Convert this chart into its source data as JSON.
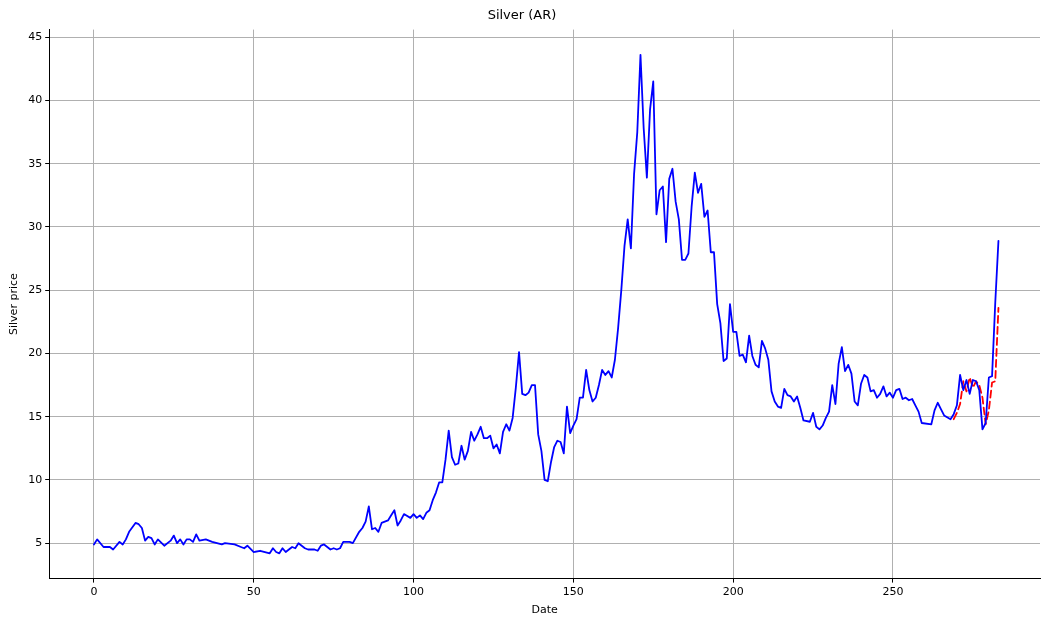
{
  "chart_data": {
    "type": "line",
    "title": "Silver (AR)",
    "xlabel": "Date",
    "ylabel": "Silver price",
    "xlim": [
      -14,
      296
    ],
    "xticks": [
      0,
      50,
      100,
      150,
      200,
      250
    ],
    "ylim": [
      2.2,
      45.6
    ],
    "yticks": [
      5,
      10,
      15,
      20,
      25,
      30,
      35,
      40,
      45
    ],
    "grid": true,
    "legend": false,
    "marker": "none",
    "series": [
      {
        "color": "#0000ff",
        "line_style": "solid",
        "x": [
          0,
          1,
          3,
          5,
          6,
          8,
          9,
          10,
          11,
          13,
          14,
          15,
          16,
          17,
          18,
          19,
          20,
          22,
          24,
          25,
          26,
          27,
          28,
          29,
          30,
          31,
          32,
          33,
          35,
          37,
          40,
          41,
          44,
          46,
          47,
          48,
          50,
          52,
          55,
          56,
          57,
          58,
          59,
          60,
          61,
          62,
          63,
          64,
          66,
          67,
          69,
          70,
          71,
          72,
          73,
          74,
          75,
          76,
          77,
          78,
          80,
          81,
          83,
          84,
          85,
          86,
          87,
          88,
          89,
          90,
          92,
          93,
          94,
          95,
          96,
          97,
          99,
          100,
          101,
          102,
          103,
          104,
          105,
          106,
          107,
          108,
          109,
          110,
          111,
          112,
          113,
          114,
          115,
          116,
          117,
          118,
          119,
          120,
          121,
          122,
          123,
          124,
          125,
          126,
          127,
          128,
          129,
          130,
          131,
          132,
          133,
          134,
          135,
          136,
          137,
          138,
          139,
          140,
          141,
          142,
          143,
          144,
          145,
          146,
          147,
          148,
          149,
          150,
          151,
          152,
          153,
          154,
          155,
          156,
          157,
          158,
          159,
          160,
          161,
          162,
          163,
          164,
          165,
          166,
          167,
          168,
          169,
          170,
          171,
          172,
          173,
          174,
          175,
          176,
          177,
          178,
          179,
          180,
          181,
          182,
          183,
          184,
          185,
          186,
          187,
          188,
          189,
          190,
          191,
          192,
          193,
          194,
          195,
          196,
          197,
          198,
          199,
          200,
          201,
          202,
          203,
          204,
          205,
          206,
          207,
          208,
          209,
          210,
          211,
          212,
          213,
          214,
          215,
          216,
          217,
          218,
          219,
          220,
          221,
          222,
          224,
          225,
          226,
          227,
          228,
          229,
          230,
          231,
          232,
          233,
          234,
          235,
          236,
          237,
          238,
          239,
          240,
          241,
          242,
          243,
          244,
          245,
          246,
          247,
          248,
          249,
          250,
          251,
          252,
          253,
          254,
          255,
          256,
          257,
          258,
          259,
          262,
          263,
          264,
          265,
          266,
          268,
          269,
          270,
          271,
          272,
          273,
          274,
          275,
          276,
          277,
          278,
          279,
          280,
          281,
          282,
          283
        ],
        "values": [
          4.9,
          5.3,
          4.7,
          4.7,
          4.5,
          5.1,
          4.9,
          5.3,
          5.9,
          6.6,
          6.5,
          6.2,
          5.2,
          5.5,
          5.4,
          4.9,
          5.3,
          4.8,
          5.2,
          5.6,
          5.0,
          5.3,
          4.9,
          5.3,
          5.3,
          5.1,
          5.7,
          5.2,
          5.3,
          5.1,
          4.9,
          5.0,
          4.9,
          4.7,
          4.6,
          4.8,
          4.3,
          4.4,
          4.2,
          4.6,
          4.3,
          4.2,
          4.6,
          4.3,
          4.5,
          4.7,
          4.6,
          5.0,
          4.6,
          4.5,
          4.5,
          4.4,
          4.8,
          4.9,
          4.7,
          4.5,
          4.6,
          4.5,
          4.6,
          5.1,
          5.1,
          5.0,
          5.9,
          6.2,
          6.7,
          7.9,
          6.1,
          6.2,
          5.9,
          6.6,
          6.8,
          7.2,
          7.6,
          6.4,
          6.8,
          7.3,
          7.0,
          7.3,
          7.0,
          7.2,
          6.9,
          7.4,
          7.6,
          8.4,
          9.0,
          9.8,
          9.8,
          11.6,
          13.9,
          11.8,
          11.2,
          11.3,
          12.7,
          11.6,
          12.3,
          13.8,
          13.1,
          13.6,
          14.2,
          13.3,
          13.3,
          13.5,
          12.5,
          12.8,
          12.1,
          13.8,
          14.4,
          13.9,
          14.9,
          17.3,
          20.1,
          16.8,
          16.7,
          16.9,
          17.5,
          17.5,
          13.6,
          12.3,
          10.0,
          9.9,
          11.4,
          12.6,
          13.1,
          13.0,
          12.1,
          15.8,
          13.7,
          14.3,
          14.8,
          16.5,
          16.5,
          18.7,
          17.1,
          16.2,
          16.5,
          17.5,
          18.7,
          18.3,
          18.6,
          18.1,
          19.5,
          22.0,
          25.0,
          28.5,
          30.6,
          28.3,
          34.2,
          37.5,
          43.6,
          37.8,
          33.9,
          39.3,
          41.5,
          31.0,
          32.9,
          33.2,
          28.8,
          33.8,
          34.6,
          32.0,
          30.6,
          27.4,
          27.4,
          27.9,
          31.6,
          34.3,
          32.7,
          33.4,
          30.8,
          31.3,
          28.0,
          28.0,
          23.9,
          22.4,
          19.4,
          19.6,
          23.9,
          21.7,
          21.7,
          19.8,
          19.9,
          19.3,
          21.4,
          19.8,
          19.1,
          18.9,
          21.0,
          20.4,
          19.5,
          17.0,
          16.2,
          15.8,
          15.7,
          17.2,
          16.7,
          16.6,
          16.2,
          16.6,
          15.7,
          14.7,
          14.6,
          15.3,
          14.2,
          14.0,
          14.3,
          14.9,
          15.4,
          17.5,
          16.0,
          19.2,
          20.5,
          18.6,
          19.1,
          18.4,
          16.2,
          15.9,
          17.6,
          18.3,
          18.1,
          17.0,
          17.1,
          16.5,
          16.8,
          17.4,
          16.6,
          16.9,
          16.5,
          17.1,
          17.2,
          16.4,
          16.5,
          16.3,
          16.4,
          15.9,
          15.4,
          14.5,
          14.4,
          15.5,
          16.1,
          15.6,
          15.1,
          14.8,
          15.2,
          15.9,
          18.3,
          17.1,
          17.9,
          16.8,
          17.9,
          17.8,
          17.1,
          14.0,
          14.5,
          18.1,
          18.2,
          24.0,
          28.9
        ]
      },
      {
        "color": "#ff0000",
        "line_style": "dashed",
        "x": [
          269,
          270,
          271,
          272,
          273,
          274,
          275,
          276,
          277,
          278,
          279,
          280,
          281,
          282,
          283
        ],
        "values": [
          14.8,
          15.3,
          16.0,
          17.8,
          17.0,
          18.1,
          17.3,
          17.8,
          17.5,
          16.5,
          14.4,
          15.5,
          17.7,
          17.8,
          23.6
        ]
      }
    ]
  }
}
